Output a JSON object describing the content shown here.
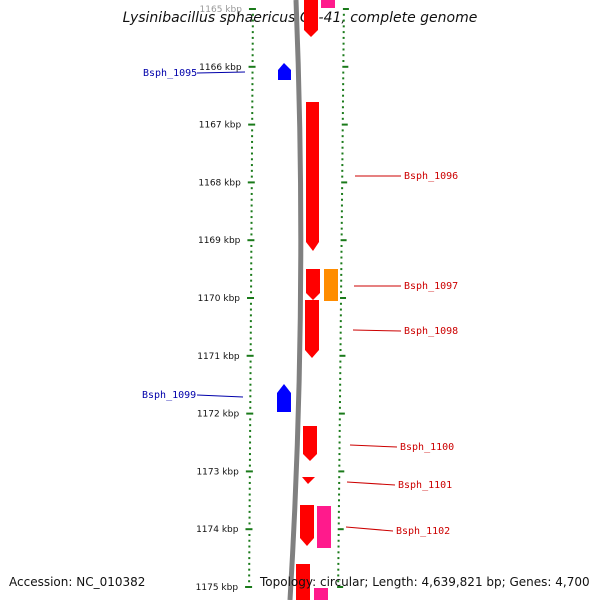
{
  "title": "Lysinibacillus sphaericus C3-41, complete genome",
  "accession": "Accession: NC_010382",
  "summary": "Topology: circular; Length: 4,639,821 bp; Genes: 4,700",
  "ruler": {
    "ticks": [
      {
        "kbp": 1165,
        "label": "1165 kbp"
      },
      {
        "kbp": 1166,
        "label": "1166 kbp"
      },
      {
        "kbp": 1167,
        "label": "1167 kbp"
      },
      {
        "kbp": 1168,
        "label": "1168 kbp"
      },
      {
        "kbp": 1169,
        "label": "1169 kbp"
      },
      {
        "kbp": 1170,
        "label": "1170 kbp"
      },
      {
        "kbp": 1171,
        "label": "1171 kbp"
      },
      {
        "kbp": 1172,
        "label": "1172 kbp"
      },
      {
        "kbp": 1173,
        "label": "1173 kbp"
      },
      {
        "kbp": 1174,
        "label": "1174 kbp"
      },
      {
        "kbp": 1175,
        "label": "1175 kbp"
      }
    ]
  },
  "colors": {
    "forward_gene": "#ff0000",
    "reverse_gene": "#0000ff",
    "orange_feature": "#ff8c00",
    "pink_feature": "#ff1a8c",
    "tick": "#1a7a1a",
    "backbone": "#808080",
    "label_forward": "#cc0000",
    "label_reverse": "#0000aa"
  },
  "genes": [
    {
      "name": "Bsph_1095",
      "strand": "reverse",
      "start_kbp": 1165.95,
      "end_kbp": 1166.15
    },
    {
      "name": "Bsph_1096",
      "strand": "forward",
      "start_kbp": 1166.7,
      "end_kbp": 1169.3
    },
    {
      "name": "Bsph_1097",
      "strand": "forward",
      "start_kbp": 1169.55,
      "end_kbp": 1170.05
    },
    {
      "name": "Bsph_1098",
      "strand": "forward",
      "start_kbp": 1170.05,
      "end_kbp": 1171.05
    },
    {
      "name": "Bsph_1099",
      "strand": "reverse",
      "start_kbp": 1171.45,
      "end_kbp": 1171.95
    },
    {
      "name": "Bsph_1100",
      "strand": "forward",
      "start_kbp": 1172.25,
      "end_kbp": 1172.85
    },
    {
      "name": "Bsph_1101",
      "strand": "forward",
      "start_kbp": 1173.1,
      "end_kbp": 1173.25
    },
    {
      "name": "Bsph_1102",
      "strand": "forward",
      "start_kbp": 1173.55,
      "end_kbp": 1174.3
    }
  ]
}
